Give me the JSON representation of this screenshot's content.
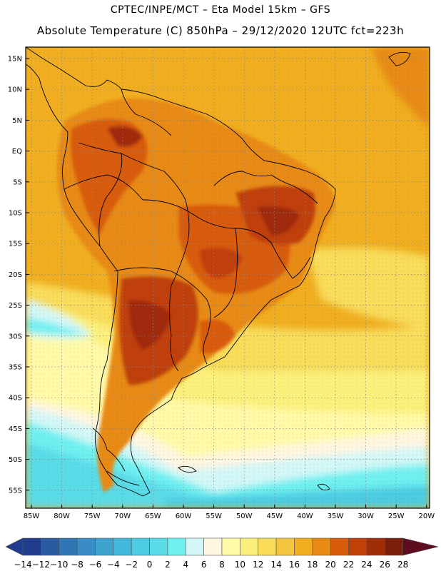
{
  "header": {
    "line1": "CPTEC/INPE/MCT –  Eta Model 15km – GFS",
    "line2": "Absolute Temperature (C) 850hPa – 29/12/2020 12UTC fct=223h"
  },
  "axes": {
    "lat_labels": [
      "15N",
      "10N",
      "5N",
      "EQ",
      "5S",
      "10S",
      "15S",
      "20S",
      "25S",
      "30S",
      "35S",
      "40S",
      "45S",
      "50S",
      "55S"
    ],
    "lon_labels": [
      "85W",
      "80W",
      "75W",
      "70W",
      "65W",
      "60W",
      "55W",
      "50W",
      "45W",
      "40W",
      "35W",
      "30W",
      "25W",
      "20W"
    ]
  },
  "colorbar": {
    "labels": [
      "-14",
      "-12",
      "-10",
      "-8",
      "-6",
      "-4",
      "-2",
      "0",
      "2",
      "4",
      "6",
      "8",
      "10",
      "12",
      "14",
      "16",
      "18",
      "20",
      "22",
      "24",
      "26",
      "28"
    ],
    "colors": [
      "#1f3d8c",
      "#2a5aa0",
      "#3176b4",
      "#3a8cc4",
      "#3fa3cf",
      "#44b8da",
      "#4ccce3",
      "#5adbe8",
      "#6ff0f0",
      "#d3f7f7",
      "#fff6e0",
      "#fffaa8",
      "#fcf07c",
      "#f8dc5a",
      "#f4c640",
      "#f0ae20",
      "#e88a14",
      "#d85c0c",
      "#c04008",
      "#a02c08",
      "#7c1e0c",
      "#5e0c20"
    ]
  }
}
